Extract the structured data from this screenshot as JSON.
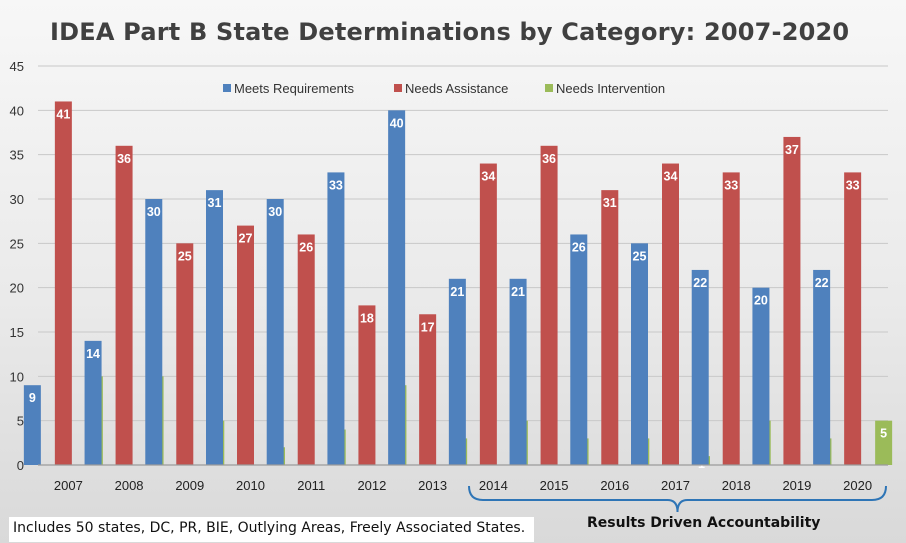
{
  "chart_data": {
    "type": "bar",
    "title": "IDEA Part B State Determinations by Category: 2007-2020",
    "categories": [
      "2007",
      "2008",
      "2009",
      "2010",
      "2011",
      "2012",
      "2013",
      "2014",
      "2015",
      "2016",
      "2017",
      "2018",
      "2019",
      "2020"
    ],
    "series": [
      {
        "name": "Meets Requirements",
        "color": "#4f81bd",
        "values": [
          9,
          14,
          30,
          31,
          30,
          33,
          40,
          21,
          21,
          26,
          25,
          22,
          20,
          22
        ]
      },
      {
        "name": "Needs Assistance",
        "color": "#c0504d",
        "values": [
          41,
          36,
          25,
          27,
          26,
          18,
          17,
          34,
          36,
          31,
          34,
          33,
          37,
          33
        ]
      },
      {
        "name": "Needs Intervention",
        "color": "#9bbb59",
        "values": [
          10,
          10,
          5,
          2,
          4,
          9,
          3,
          5,
          3,
          3,
          1,
          5,
          3,
          5
        ]
      }
    ],
    "ylim": [
      0,
      45
    ],
    "yticks": [
      0,
      5,
      10,
      15,
      20,
      25,
      30,
      35,
      40,
      45
    ],
    "grid": true,
    "legend": "top-center",
    "data_labels": true,
    "bracket_label": "Results Driven Accountability",
    "bracket_categories": [
      "2014",
      "2020"
    ]
  },
  "footnote": "Includes 50 states, DC, PR, BIE, Outlying Areas, Freely Associated States."
}
